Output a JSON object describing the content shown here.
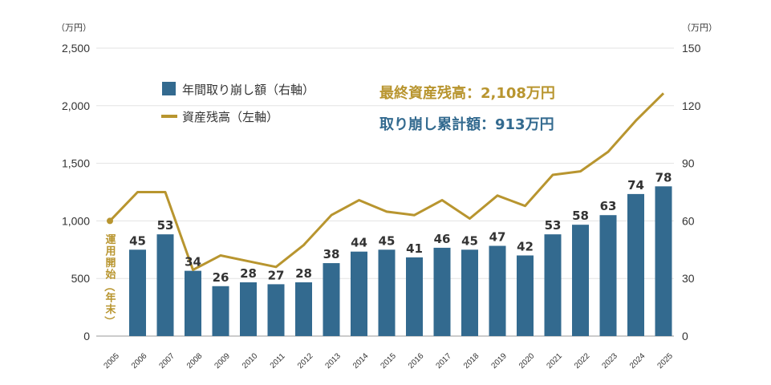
{
  "chart_data": {
    "type": "bar",
    "x": [
      "2005",
      "2006",
      "2007",
      "2008",
      "2009",
      "2010",
      "2011",
      "2012",
      "2013",
      "2014",
      "2015",
      "2016",
      "2017",
      "2018",
      "2019",
      "2020",
      "2021",
      "2022",
      "2023",
      "2024",
      "2025"
    ],
    "series": [
      {
        "name": "年間取り崩し額（右軸）",
        "type": "bar",
        "axis": "right",
        "color": "#336a8f",
        "values": [
          null,
          45,
          53,
          34,
          26,
          28,
          27,
          28,
          38,
          44,
          45,
          41,
          46,
          45,
          47,
          42,
          53,
          58,
          63,
          74,
          78
        ],
        "labels": [
          "",
          "45",
          "53",
          "34",
          "26",
          "28",
          "27",
          "28",
          "38",
          "44",
          "45",
          "41",
          "46",
          "45",
          "47",
          "42",
          "53",
          "58",
          "63",
          "74",
          "78"
        ]
      },
      {
        "name": "資産残高（左軸）",
        "type": "line",
        "axis": "left",
        "color": "#b8952f",
        "values": [
          1000,
          1250,
          1250,
          575,
          700,
          650,
          600,
          790,
          1050,
          1180,
          1080,
          1050,
          1180,
          1020,
          1220,
          1130,
          1400,
          1430,
          1600,
          1870,
          2108
        ]
      }
    ],
    "left_axis": {
      "unit": "（万円）",
      "min": 0,
      "max": 2500,
      "ticks": [
        0,
        500,
        1000,
        1500,
        2000,
        2500
      ],
      "tick_labels": [
        "0",
        "500",
        "1,000",
        "1,500",
        "2,000",
        "2,500"
      ]
    },
    "right_axis": {
      "unit": "（万円）",
      "min": 0,
      "max": 150,
      "ticks": [
        0,
        30,
        60,
        90,
        120,
        150
      ],
      "tick_labels": [
        "0",
        "30",
        "60",
        "90",
        "120",
        "150"
      ]
    },
    "grid": true,
    "legend": "top-left",
    "start_label": "運用開始（年末）",
    "annotations": [
      {
        "text": "最終資産残高：2,108万円",
        "color": "#b8952f"
      },
      {
        "text": "取り崩し累計額：913万円",
        "color": "#336a8f"
      }
    ]
  }
}
